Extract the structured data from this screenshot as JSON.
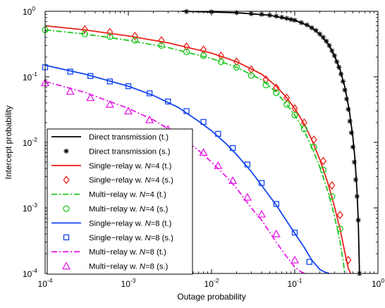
{
  "chart_data": {
    "type": "line",
    "xlabel": "Outage probability",
    "ylabel": "Intercept probability",
    "xscale": "log",
    "yscale": "log",
    "xlim": [
      0.0001,
      1
    ],
    "ylim": [
      0.0001,
      1
    ],
    "grid": false,
    "legend_position": "lower-left",
    "x_ticks": [
      {
        "value": 0.0001,
        "base": "10",
        "exp": "-4"
      },
      {
        "value": 0.001,
        "base": "10",
        "exp": "-3"
      },
      {
        "value": 0.01,
        "base": "10",
        "exp": "-2"
      },
      {
        "value": 0.1,
        "base": "10",
        "exp": "-1"
      },
      {
        "value": 1,
        "base": "10",
        "exp": "0"
      }
    ],
    "y_ticks": [
      {
        "value": 1,
        "base": "10",
        "exp": "0"
      },
      {
        "value": 0.1,
        "base": "10",
        "exp": "-1"
      },
      {
        "value": 0.01,
        "base": "10",
        "exp": "-2"
      },
      {
        "value": 0.001,
        "base": "10",
        "exp": "-3"
      },
      {
        "value": 0.0001,
        "base": "10",
        "exp": "-4"
      }
    ],
    "series": [
      {
        "name": "Direct transmission (t.)",
        "color": "#000000",
        "style": "solid",
        "marker": "none",
        "x": [
          0.0044,
          0.02,
          0.05,
          0.1,
          0.15,
          0.2,
          0.25,
          0.3,
          0.35,
          0.4,
          0.45,
          0.5,
          0.53,
          0.56,
          0.58,
          0.6
        ],
        "y": [
          1.0,
          0.95,
          0.87,
          0.73,
          0.59,
          0.45,
          0.32,
          0.21,
          0.13,
          0.07,
          0.032,
          0.012,
          0.0055,
          0.0018,
          0.00065,
          0.0001
        ]
      },
      {
        "name": "Direct transmission (s.)",
        "color": "#000000",
        "style": "none",
        "marker": "star",
        "x": [
          0.005,
          0.01,
          0.02,
          0.03,
          0.04,
          0.05,
          0.06,
          0.07,
          0.08,
          0.09,
          0.1,
          0.12,
          0.14,
          0.16,
          0.18,
          0.2,
          0.22,
          0.24,
          0.26,
          0.28,
          0.3,
          0.32,
          0.34,
          0.36,
          0.38,
          0.4,
          0.42,
          0.44,
          0.46,
          0.48,
          0.5,
          0.52,
          0.54,
          0.56,
          0.58,
          0.6
        ],
        "y": [
          0.99,
          0.98,
          0.95,
          0.92,
          0.9,
          0.87,
          0.84,
          0.81,
          0.78,
          0.75,
          0.73,
          0.67,
          0.62,
          0.56,
          0.51,
          0.45,
          0.4,
          0.35,
          0.3,
          0.25,
          0.21,
          0.17,
          0.14,
          0.11,
          0.085,
          0.063,
          0.046,
          0.032,
          0.021,
          0.014,
          0.0085,
          0.005,
          0.0027,
          0.0015,
          0.00065,
          0.0001
        ]
      },
      {
        "name": "Single−relay w. N=4 (t.)",
        "color": "#e8231c",
        "style": "solid",
        "marker": "none",
        "x": [
          0.0001,
          0.0003,
          0.001,
          0.003,
          0.01,
          0.02,
          0.04,
          0.06,
          0.08,
          0.1,
          0.13,
          0.16,
          0.2,
          0.25,
          0.3,
          0.35,
          0.4,
          0.44,
          0.47
        ],
        "y": [
          0.6,
          0.52,
          0.42,
          0.33,
          0.23,
          0.17,
          0.11,
          0.072,
          0.048,
          0.033,
          0.019,
          0.011,
          0.0055,
          0.0024,
          0.00105,
          0.00048,
          0.00021,
          0.00012,
          0.0001
        ]
      },
      {
        "name": "Single−relay w. N=4 (s.)",
        "color": "#e8231c",
        "style": "none",
        "marker": "diamond",
        "x": [
          0.0003,
          0.0006,
          0.0012,
          0.0025,
          0.005,
          0.008,
          0.013,
          0.02,
          0.03,
          0.045,
          0.06,
          0.08,
          0.1,
          0.13,
          0.17,
          0.22,
          0.28,
          0.35,
          0.44
        ],
        "y": [
          0.53,
          0.48,
          0.42,
          0.36,
          0.29,
          0.26,
          0.21,
          0.17,
          0.13,
          0.091,
          0.068,
          0.048,
          0.033,
          0.02,
          0.011,
          0.0052,
          0.0022,
          0.00078,
          0.00016
        ]
      },
      {
        "name": "Multi−relay w. N=4 (t.)",
        "color": "#1ec81e",
        "style": "dashdot",
        "marker": "none",
        "x": [
          0.0001,
          0.0003,
          0.001,
          0.003,
          0.01,
          0.02,
          0.04,
          0.06,
          0.08,
          0.1,
          0.13,
          0.16,
          0.2,
          0.25,
          0.3,
          0.35,
          0.38,
          0.4
        ],
        "y": [
          0.52,
          0.45,
          0.36,
          0.28,
          0.19,
          0.14,
          0.09,
          0.058,
          0.038,
          0.026,
          0.015,
          0.0085,
          0.0042,
          0.0018,
          0.00075,
          0.00031,
          0.00016,
          0.0001
        ]
      },
      {
        "name": "Multi−relay w. N=4 (s.)",
        "color": "#1ec81e",
        "style": "none",
        "marker": "circle",
        "x": [
          0.0001,
          0.0003,
          0.0006,
          0.0012,
          0.0025,
          0.005,
          0.008,
          0.013,
          0.02,
          0.03,
          0.045,
          0.06,
          0.08,
          0.1,
          0.13,
          0.17,
          0.22,
          0.28,
          0.35
        ],
        "y": [
          0.52,
          0.45,
          0.41,
          0.36,
          0.3,
          0.24,
          0.21,
          0.17,
          0.14,
          0.105,
          0.075,
          0.057,
          0.038,
          0.026,
          0.016,
          0.0085,
          0.0038,
          0.0015,
          0.00048
        ]
      },
      {
        "name": "Single−relay w. N=8 (t.)",
        "color": "#1446f0",
        "style": "solid",
        "marker": "none",
        "x": [
          0.0001,
          0.0003,
          0.001,
          0.002,
          0.004,
          0.007,
          0.01,
          0.015,
          0.02,
          0.03,
          0.04,
          0.06,
          0.08,
          0.1,
          0.13,
          0.16,
          0.2,
          0.23,
          0.26
        ],
        "y": [
          0.15,
          0.11,
          0.072,
          0.052,
          0.034,
          0.021,
          0.015,
          0.0095,
          0.0065,
          0.0036,
          0.0022,
          0.0011,
          0.00063,
          0.00041,
          0.00025,
          0.00016,
          0.000115,
          0.000105,
          0.0001
        ]
      },
      {
        "name": "Single−relay w. N=8 (s.)",
        "color": "#1446f0",
        "style": "none",
        "marker": "square",
        "x": [
          0.0001,
          0.0002,
          0.00035,
          0.0006,
          0.001,
          0.0018,
          0.003,
          0.005,
          0.008,
          0.012,
          0.018,
          0.027,
          0.04,
          0.06,
          0.1,
          0.15
        ],
        "y": [
          0.14,
          0.12,
          0.103,
          0.085,
          0.072,
          0.056,
          0.042,
          0.03,
          0.0205,
          0.0135,
          0.0082,
          0.0046,
          0.0024,
          0.00115,
          0.00042,
          0.00015
        ]
      },
      {
        "name": "Multi−relay w. N=8 (t.)",
        "color": "#e61ee6",
        "style": "dashdot",
        "marker": "none",
        "x": [
          0.0001,
          0.0003,
          0.001,
          0.002,
          0.004,
          0.007,
          0.01,
          0.015,
          0.02,
          0.03,
          0.04,
          0.06,
          0.08,
          0.1,
          0.12,
          0.135
        ],
        "y": [
          0.085,
          0.058,
          0.033,
          0.022,
          0.013,
          0.0075,
          0.005,
          0.003,
          0.002,
          0.001,
          0.00065,
          0.0003,
          0.00018,
          0.000125,
          0.000105,
          0.0001
        ]
      },
      {
        "name": "Multi−relay w. N=8 (s.)",
        "color": "#e61ee6",
        "style": "none",
        "marker": "triangle",
        "x": [
          0.0001,
          0.0002,
          0.00035,
          0.0006,
          0.001,
          0.0018,
          0.003,
          0.005,
          0.008,
          0.012,
          0.018,
          0.027,
          0.04,
          0.06,
          0.1
        ],
        "y": [
          0.081,
          0.06,
          0.048,
          0.038,
          0.03,
          0.022,
          0.0158,
          0.011,
          0.007,
          0.0044,
          0.0026,
          0.00145,
          0.0008,
          0.0004,
          0.00016
        ]
      }
    ]
  }
}
